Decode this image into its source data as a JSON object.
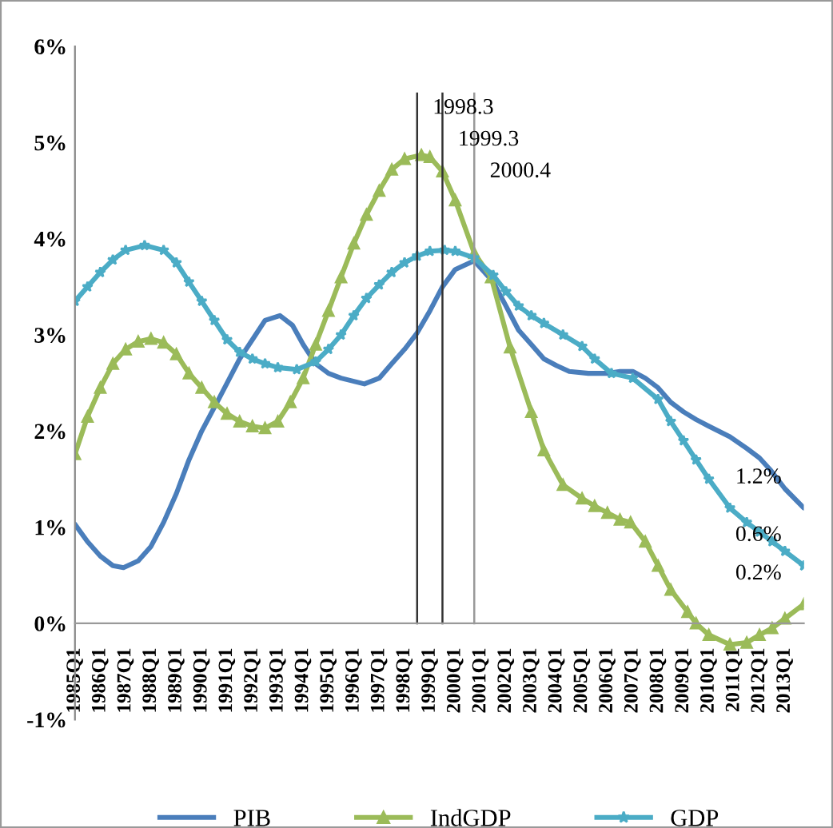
{
  "chart_data": {
    "type": "line",
    "xlim": [
      "1985-01",
      "2013-10"
    ],
    "xticks": [
      {
        "value": "1985-01",
        "label": "1985Q1"
      },
      {
        "value": "1986-01",
        "label": "1986Q1"
      },
      {
        "value": "1987-01",
        "label": "1987Q1"
      },
      {
        "value": "1988-01",
        "label": "1988Q1"
      },
      {
        "value": "1989-01",
        "label": "1989Q1"
      },
      {
        "value": "1990-01",
        "label": "1990Q1"
      },
      {
        "value": "1991-01",
        "label": "1991Q1"
      },
      {
        "value": "1992-01",
        "label": "1992Q1"
      },
      {
        "value": "1993-01",
        "label": "1993Q1"
      },
      {
        "value": "1994-01",
        "label": "1994Q1"
      },
      {
        "value": "1995-01",
        "label": "1995Q1"
      },
      {
        "value": "1996-01",
        "label": "1996Q1"
      },
      {
        "value": "1997-01",
        "label": "1997Q1"
      },
      {
        "value": "1998-01",
        "label": "1998Q1"
      },
      {
        "value": "1999-01",
        "label": "1999Q1"
      },
      {
        "value": "2000-01",
        "label": "2000Q1"
      },
      {
        "value": "2001-01",
        "label": "2001Q1"
      },
      {
        "value": "2002-01",
        "label": "2002Q1"
      },
      {
        "value": "2003-01",
        "label": "2003Q1"
      },
      {
        "value": "2004-01",
        "label": "2004Q1"
      },
      {
        "value": "2005-01",
        "label": "2005Q1"
      },
      {
        "value": "2006-01",
        "label": "2006Q1"
      },
      {
        "value": "2007-01",
        "label": "2007Q1"
      },
      {
        "value": "2008-01",
        "label": "2008Q1"
      },
      {
        "value": "2009-01",
        "label": "2009Q1"
      },
      {
        "value": "2010-01",
        "label": "2010Q1"
      },
      {
        "value": "2011-01",
        "label": "2011Q1"
      },
      {
        "value": "2012-01",
        "label": "2012Q1"
      },
      {
        "value": "2013-01",
        "label": "2013Q1"
      }
    ],
    "ylim": [
      -1,
      6
    ],
    "yticks": [
      {
        "value": -1,
        "label": "-1%"
      },
      {
        "value": 0,
        "label": "0%"
      },
      {
        "value": 1,
        "label": "1%"
      },
      {
        "value": 2,
        "label": "2%"
      },
      {
        "value": 3,
        "label": "3%"
      },
      {
        "value": 4,
        "label": "4%"
      },
      {
        "value": 5,
        "label": "5%"
      },
      {
        "value": 6,
        "label": "6%"
      }
    ],
    "grid": false,
    "legend": "bottom",
    "line_style": "solid",
    "series": [
      {
        "name": "PIB",
        "color": "#4a7ebb",
        "marker": "none",
        "x": [
          "1985-01",
          "1985-07",
          "1986-01",
          "1986-07",
          "1986-12",
          "1987-07",
          "1988-01",
          "1988-07",
          "1989-01",
          "1989-07",
          "1990-01",
          "1990-09",
          "1991-07",
          "1992-01",
          "1992-07",
          "1993-02",
          "1993-08",
          "1994-01",
          "1994-07",
          "1995-01",
          "1995-07",
          "1996-06",
          "1997-01",
          "1997-07",
          "1998-01",
          "1998-07",
          "1999-01",
          "1999-07",
          "2000-01",
          "2000-10",
          "2001-07",
          "2002-01",
          "2002-07",
          "2003-01",
          "2003-07",
          "2004-01",
          "2004-07",
          "2005-04",
          "2006-01",
          "2006-07",
          "2007-01",
          "2007-07",
          "2008-01",
          "2008-07",
          "2009-01",
          "2009-07",
          "2010-01",
          "2010-11",
          "2011-07",
          "2012-01",
          "2012-06",
          "2013-01",
          "2013-10"
        ],
        "values": [
          1.03,
          0.85,
          0.7,
          0.6,
          0.58,
          0.65,
          0.8,
          1.05,
          1.35,
          1.7,
          2.0,
          2.33,
          2.75,
          2.95,
          3.15,
          3.2,
          3.1,
          2.9,
          2.7,
          2.6,
          2.55,
          2.49,
          2.55,
          2.7,
          2.85,
          3.02,
          3.25,
          3.5,
          3.68,
          3.77,
          3.55,
          3.3,
          3.05,
          2.9,
          2.75,
          2.68,
          2.62,
          2.6,
          2.6,
          2.62,
          2.62,
          2.55,
          2.45,
          2.3,
          2.2,
          2.12,
          2.05,
          1.94,
          1.82,
          1.72,
          1.6,
          1.4,
          1.2
        ]
      },
      {
        "name": "IndGDP",
        "color": "#9bbb59",
        "marker": "triangle",
        "x": [
          "1985-01",
          "1985-07",
          "1986-01",
          "1986-07",
          "1987-01",
          "1987-07",
          "1988-01",
          "1988-07",
          "1989-01",
          "1989-07",
          "1990-01",
          "1990-07",
          "1991-01",
          "1991-07",
          "1992-01",
          "1992-07",
          "1993-01",
          "1993-07",
          "1994-01",
          "1994-07",
          "1995-01",
          "1995-07",
          "1996-01",
          "1996-07",
          "1997-01",
          "1997-07",
          "1998-01",
          "1998-09",
          "1999-01",
          "1999-07",
          "2000-01",
          "2000-10",
          "2001-06",
          "2002-03",
          "2003-01",
          "2003-07",
          "2004-04",
          "2005-01",
          "2005-07",
          "2006-01",
          "2006-07",
          "2006-12",
          "2007-07",
          "2008-01",
          "2008-07",
          "2009-03",
          "2009-07",
          "2010-01",
          "2010-11",
          "2011-07",
          "2012-01",
          "2012-07",
          "2013-01",
          "2013-10"
        ],
        "values": [
          1.76,
          2.15,
          2.45,
          2.7,
          2.85,
          2.93,
          2.96,
          2.92,
          2.8,
          2.6,
          2.45,
          2.3,
          2.18,
          2.1,
          2.05,
          2.03,
          2.1,
          2.3,
          2.55,
          2.9,
          3.25,
          3.6,
          3.95,
          4.25,
          4.5,
          4.72,
          4.83,
          4.87,
          4.85,
          4.7,
          4.4,
          3.85,
          3.6,
          2.87,
          2.2,
          1.8,
          1.44,
          1.3,
          1.22,
          1.15,
          1.08,
          1.05,
          0.85,
          0.6,
          0.35,
          0.12,
          0.0,
          -0.12,
          -0.22,
          -0.2,
          -0.12,
          -0.05,
          0.05,
          0.2
        ]
      },
      {
        "name": "GDP",
        "color": "#4bacc6",
        "marker": "star",
        "x": [
          "1985-01",
          "1985-07",
          "1986-01",
          "1986-07",
          "1987-01",
          "1987-10",
          "1988-07",
          "1989-01",
          "1989-07",
          "1990-01",
          "1990-07",
          "1991-01",
          "1991-07",
          "1992-01",
          "1992-07",
          "1993-01",
          "1993-10",
          "1994-07",
          "1995-01",
          "1995-07",
          "1996-01",
          "1996-07",
          "1997-01",
          "1997-07",
          "1998-01",
          "1998-07",
          "1999-01",
          "1999-08",
          "2000-01",
          "2000-10",
          "2001-07",
          "2002-01",
          "2002-07",
          "2003-01",
          "2003-07",
          "2004-04",
          "2005-01",
          "2005-07",
          "2006-03",
          "2007-01",
          "2008-01",
          "2008-07",
          "2009-01",
          "2009-07",
          "2010-01",
          "2010-11",
          "2011-07",
          "2012-01",
          "2012-07",
          "2013-01",
          "2013-10"
        ],
        "values": [
          3.35,
          3.5,
          3.65,
          3.78,
          3.88,
          3.93,
          3.88,
          3.75,
          3.55,
          3.35,
          3.15,
          2.95,
          2.82,
          2.75,
          2.7,
          2.66,
          2.64,
          2.72,
          2.85,
          3.0,
          3.2,
          3.38,
          3.52,
          3.65,
          3.75,
          3.82,
          3.87,
          3.88,
          3.87,
          3.8,
          3.62,
          3.45,
          3.3,
          3.2,
          3.12,
          3.0,
          2.88,
          2.75,
          2.6,
          2.55,
          2.33,
          2.1,
          1.9,
          1.7,
          1.5,
          1.2,
          1.05,
          0.95,
          0.85,
          0.75,
          0.6
        ]
      }
    ],
    "ref_lines": [
      {
        "axis": "x",
        "value": "1998-07",
        "label": "1998.3",
        "color": "#333333"
      },
      {
        "axis": "x",
        "value": "1999-07",
        "label": "1999.3",
        "color": "#333333"
      },
      {
        "axis": "x",
        "value": "2000-10",
        "label": "2000.4",
        "color": "#999999"
      }
    ],
    "annotations": [
      {
        "text": "1.2%",
        "x": "2013-10",
        "y": 1.2
      },
      {
        "text": "0.6%",
        "x": "2013-10",
        "y": 0.6
      },
      {
        "text": "0.2%",
        "x": "2013-10",
        "y": 0.2
      }
    ]
  }
}
